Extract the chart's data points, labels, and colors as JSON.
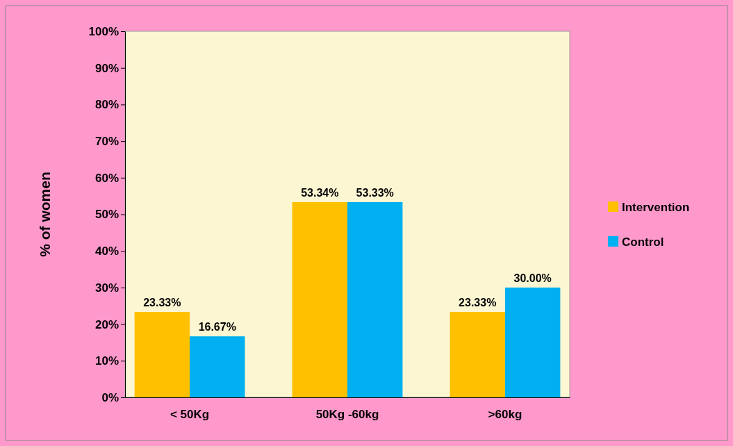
{
  "chart_data": {
    "type": "bar",
    "ylabel": "% of women",
    "categories": [
      "< 50Kg",
      "50Kg -60kg",
      ">60kg"
    ],
    "series": [
      {
        "name": "Intervention",
        "color": "#ffc000",
        "values": [
          23.33,
          53.34,
          23.33
        ],
        "value_labels": [
          "23.33%",
          "53.34%",
          "23.33%"
        ]
      },
      {
        "name": "Control",
        "color": "#00b0f0",
        "values": [
          16.67,
          53.33,
          30.0
        ],
        "value_labels": [
          "16.67%",
          "53.33%",
          "30.00%"
        ]
      }
    ],
    "ylim": [
      0,
      100
    ],
    "yticks": [
      {
        "value": 0,
        "label": "0%"
      },
      {
        "value": 10,
        "label": "10%"
      },
      {
        "value": 20,
        "label": "20%"
      },
      {
        "value": 30,
        "label": "30%"
      },
      {
        "value": 40,
        "label": "40%"
      },
      {
        "value": 50,
        "label": "50%"
      },
      {
        "value": 60,
        "label": "60%"
      },
      {
        "value": 70,
        "label": "70%"
      },
      {
        "value": 80,
        "label": "80%"
      },
      {
        "value": 90,
        "label": "90%"
      },
      {
        "value": 100,
        "label": "100%"
      }
    ],
    "legend": "right",
    "grid": false
  }
}
